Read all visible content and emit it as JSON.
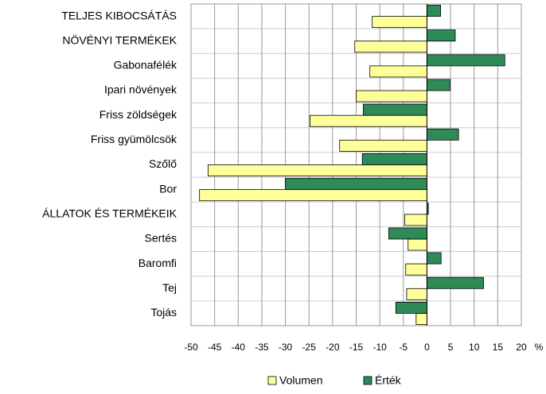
{
  "chart_data": {
    "type": "hbar",
    "categories": [
      "TELJES KIBOCSÁTÁS",
      "NÖVÉNYI TERMÉKEK",
      "Gabonafélék",
      "Ipari növények",
      "Friss zöldségek",
      "Friss gyümölcsök",
      "Szőlő",
      "Bor",
      "ÁLLATOK ÉS TERMÉKEIK",
      "Sertés",
      "Baromfi",
      "Tej",
      "Tojás"
    ],
    "series": [
      {
        "name": "Volumen",
        "color": "#ffff99",
        "values": [
          -11.6,
          -15.3,
          -12.1,
          -15,
          -24.8,
          -18.5,
          -46.4,
          -48.2,
          -4.7,
          -4,
          -4.5,
          -4.3,
          -2.3
        ]
      },
      {
        "name": "Érték",
        "color": "#2e8b57",
        "values": [
          2.9,
          6,
          16.5,
          4.9,
          -13.5,
          6.7,
          -13.7,
          -30,
          0.3,
          -8.1,
          3,
          12,
          -6.6
        ]
      }
    ],
    "xlabel": "%",
    "xlim": [
      -50,
      20
    ],
    "xticks": [
      -50,
      -45,
      -40,
      -35,
      -30,
      -25,
      -20,
      -15,
      -10,
      -5,
      0,
      5,
      10,
      15,
      20
    ],
    "grid": true
  }
}
